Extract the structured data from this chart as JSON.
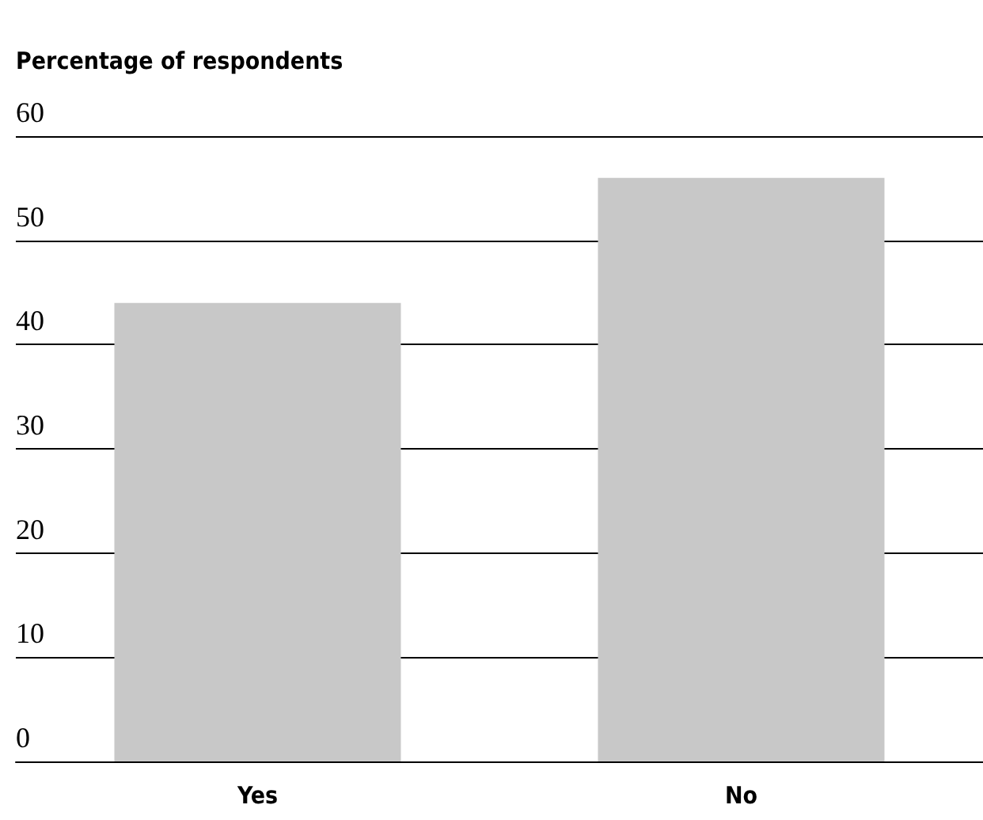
{
  "chart_data": {
    "type": "bar",
    "ylabel": "Percentage of respondents",
    "categories": [
      "Yes",
      "No"
    ],
    "values": [
      44,
      56
    ],
    "color": "#c8c8c8",
    "ylim": [
      0,
      60
    ],
    "yticks": [
      0,
      10,
      20,
      30,
      40,
      50,
      60
    ],
    "grid": "y"
  }
}
